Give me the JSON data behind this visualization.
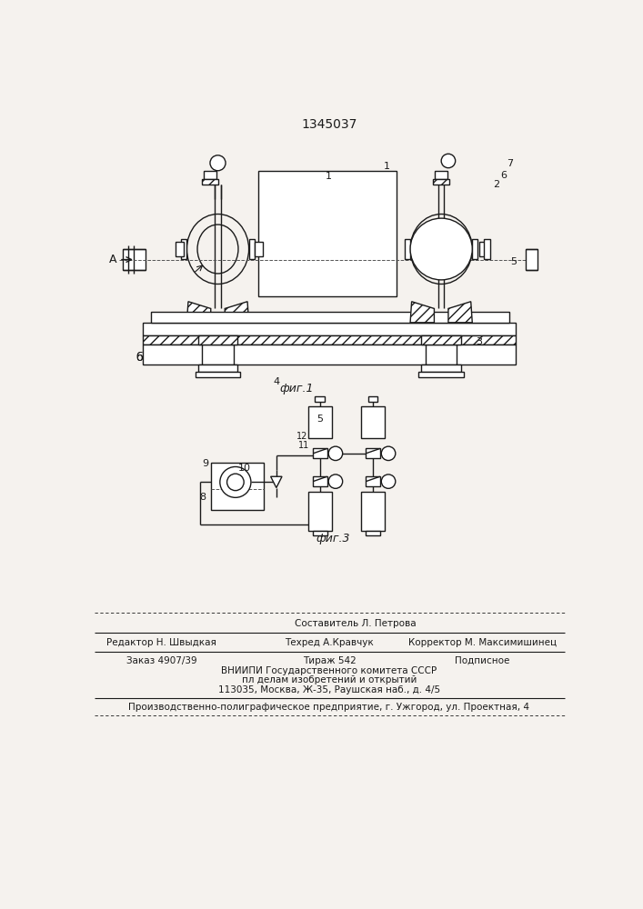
{
  "patent_number": "1345037",
  "bg_color": "#f5f2ee",
  "line_color": "#1a1a1a",
  "fig1_caption": "фиг.1",
  "fig3_caption": "фиг.3",
  "footer_line0": "Составитель Л. Петрова",
  "footer_line1a": "Редактор Н. Швыдкая",
  "footer_line1b": "Техред А.Кравчук",
  "footer_line1c": "Корректор М. Максимишинец",
  "footer_line2a": "Заказ 4907/39",
  "footer_line2b": "Тираж 542",
  "footer_line2c": "Подписное",
  "footer_line3": "ВНИИПИ Государственного комитета СССР",
  "footer_line4": "пл делам изобретений и открытий",
  "footer_line5": "113035, Москва, Ж-35, Раушская наб., д. 4/5",
  "footer_line6": "Производственно-полиграфическое предприятие, г. Ужгород, ул. Проектная, 4"
}
